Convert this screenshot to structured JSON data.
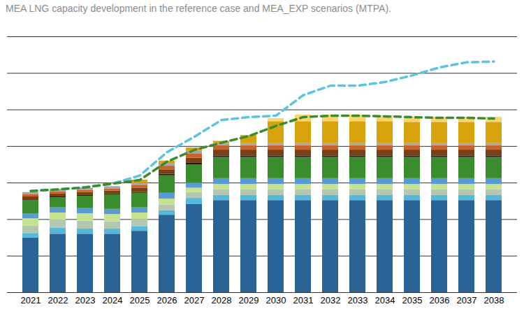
{
  "chart_data": {
    "type": "bar",
    "title": "MEA LNG capacity development in the reference case and MEA_EXP scenarios (MTPA).",
    "categories": [
      "2021",
      "2022",
      "2023",
      "2024",
      "2025",
      "2026",
      "2027",
      "2028",
      "2029",
      "2030",
      "2031",
      "2032",
      "2033",
      "2034",
      "2035",
      "2036",
      "2037",
      "2038"
    ],
    "series": [
      {
        "color": "#2a6496",
        "values": [
          75,
          80,
          80,
          80,
          84,
          106,
          121,
          126,
          126,
          126,
          126,
          126,
          126,
          126,
          126,
          126,
          126,
          126
        ]
      },
      {
        "color": "#55b9dd",
        "values": [
          6,
          8,
          7,
          7,
          6,
          6,
          8,
          7,
          7,
          7,
          7,
          7,
          7,
          7,
          7,
          7,
          7,
          7
        ]
      },
      {
        "color": "#b4c7b0",
        "values": [
          10,
          11,
          11,
          10,
          10,
          8,
          8,
          8,
          8,
          8,
          8,
          8,
          8,
          8,
          8,
          8,
          8,
          8
        ]
      },
      {
        "color": "#c6e38f",
        "values": [
          10,
          10,
          10,
          10,
          9,
          8,
          6,
          7,
          7,
          7,
          7,
          7,
          7,
          7,
          7,
          7,
          7,
          7
        ]
      },
      {
        "color": "#5b9bd5",
        "values": [
          7,
          7,
          7,
          7,
          7,
          8,
          7,
          8,
          8,
          8,
          8,
          8,
          8,
          8,
          8,
          8,
          8,
          8
        ]
      },
      {
        "color": "#3a8d2c",
        "values": [
          18,
          14,
          17,
          20,
          20,
          24,
          25,
          29,
          29,
          29,
          29,
          29,
          29,
          29,
          29,
          29,
          29,
          29
        ]
      },
      {
        "color": "#1a1a1a",
        "values": [
          1,
          1,
          1,
          1,
          1,
          2,
          2,
          2,
          2,
          2,
          2,
          2,
          2,
          2,
          2,
          2,
          2,
          2
        ]
      },
      {
        "color": "#7b3f12",
        "values": [
          4,
          4,
          4,
          4,
          6,
          6,
          7,
          8,
          8,
          8,
          8,
          8,
          8,
          8,
          8,
          8,
          8,
          8
        ]
      },
      {
        "color": "#c8632a",
        "values": [
          3,
          3,
          3,
          3,
          4,
          5,
          6,
          6,
          6,
          6,
          6,
          6,
          6,
          6,
          6,
          6,
          6,
          6
        ]
      },
      {
        "color": "#a6a6a6",
        "values": [
          3,
          3,
          3,
          3,
          3,
          3,
          4,
          3,
          3,
          3,
          3,
          3,
          3,
          3,
          3,
          3,
          3,
          3
        ]
      },
      {
        "color": "#d8a20a",
        "values": [
          0,
          0,
          0,
          0,
          4,
          4,
          4,
          3,
          11,
          30,
          30,
          30,
          30,
          30,
          29,
          29,
          29,
          29
        ]
      },
      {
        "color": "#fbd46b",
        "values": [
          0,
          0,
          0,
          0,
          0,
          0,
          0,
          0,
          0,
          4,
          9,
          9,
          9,
          8,
          7,
          7,
          7,
          7
        ]
      },
      {
        "type": "line",
        "line_style": "dashed",
        "color": "#5bc4e0",
        "values": [
          139,
          141,
          144,
          149,
          160,
          192,
          213,
          236,
          240,
          242,
          270,
          283,
          283,
          288,
          297,
          308,
          315,
          316
        ]
      },
      {
        "type": "line",
        "line_style": "dashed",
        "color": "#3a8d2c",
        "values": [
          139,
          141,
          144,
          149,
          154,
          179,
          195,
          205,
          214,
          228,
          240,
          242,
          242,
          241,
          240,
          239,
          239,
          238
        ]
      }
    ],
    "stacked": true,
    "ylim": [
      0,
      350
    ],
    "yticks": [
      0,
      50,
      100,
      150,
      200,
      250,
      300,
      350
    ],
    "grid": true,
    "tick_labels": "x"
  }
}
